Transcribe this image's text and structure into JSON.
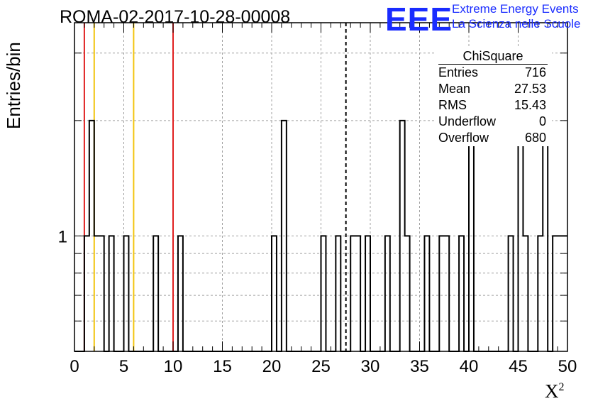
{
  "chart_data": {
    "type": "bar",
    "title": "ROMA-02-2017-10-28-00008",
    "xlabel": "X",
    "xlabel_superscript": "2",
    "ylabel": "Entries/bin",
    "xlim": [
      0,
      50
    ],
    "x_ticks": [
      0,
      5,
      10,
      15,
      20,
      25,
      30,
      35,
      40,
      45,
      50
    ],
    "y_scale": "log",
    "ylim": [
      0.5,
      3.6
    ],
    "y_tick_labels": [
      {
        "value": 1,
        "label": "1"
      }
    ],
    "grid": true,
    "bin_width": 0.5,
    "bins": [
      {
        "x": 1.0,
        "value": 1
      },
      {
        "x": 1.5,
        "value": 2
      },
      {
        "x": 2.0,
        "value": 1
      },
      {
        "x": 2.5,
        "value": 1
      },
      {
        "x": 3.5,
        "value": 1
      },
      {
        "x": 5.0,
        "value": 1
      },
      {
        "x": 8.0,
        "value": 1
      },
      {
        "x": 10.5,
        "value": 1
      },
      {
        "x": 20.0,
        "value": 1
      },
      {
        "x": 21.0,
        "value": 2
      },
      {
        "x": 25.0,
        "value": 1
      },
      {
        "x": 26.5,
        "value": 1
      },
      {
        "x": 28.0,
        "value": 1
      },
      {
        "x": 28.5,
        "value": 1
      },
      {
        "x": 29.5,
        "value": 1
      },
      {
        "x": 31.5,
        "value": 1
      },
      {
        "x": 33.0,
        "value": 2
      },
      {
        "x": 33.5,
        "value": 1
      },
      {
        "x": 35.5,
        "value": 1
      },
      {
        "x": 37.0,
        "value": 1
      },
      {
        "x": 37.5,
        "value": 1
      },
      {
        "x": 39.0,
        "value": 1
      },
      {
        "x": 40.0,
        "value": 2
      },
      {
        "x": 44.0,
        "value": 1
      },
      {
        "x": 45.0,
        "value": 2
      },
      {
        "x": 45.5,
        "value": 1
      },
      {
        "x": 47.0,
        "value": 1
      },
      {
        "x": 47.5,
        "value": 2
      },
      {
        "x": 48.5,
        "value": 1
      },
      {
        "x": 49.0,
        "value": 1
      },
      {
        "x": 49.5,
        "value": 1
      }
    ],
    "vertical_lines": [
      {
        "x": 1.0,
        "color": "#e02020",
        "style": "solid"
      },
      {
        "x": 2.0,
        "color": "#f2c40f",
        "style": "solid"
      },
      {
        "x": 6.0,
        "color": "#f2c40f",
        "style": "solid"
      },
      {
        "x": 10.0,
        "color": "#e02020",
        "style": "solid"
      },
      {
        "x": 27.53,
        "color": "#000000",
        "style": "dashed"
      }
    ],
    "stats_box": {
      "title": "ChiSquare",
      "rows": [
        {
          "label": "Entries",
          "value": "716"
        },
        {
          "label": "Mean",
          "value": "27.53"
        },
        {
          "label": "RMS",
          "value": "15.43"
        },
        {
          "label": "Underflow",
          "value": "0"
        },
        {
          "label": "Overflow",
          "value": "680"
        }
      ]
    }
  },
  "logo": {
    "mark": "EEE",
    "line1": "Extreme Energy Events",
    "line2": "La Scienza nelle Scuole",
    "color": "#1a2cff"
  }
}
